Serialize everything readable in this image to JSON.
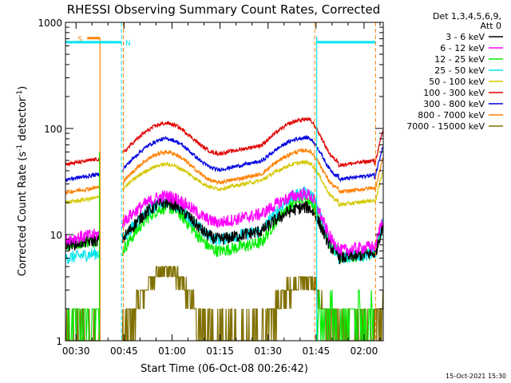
{
  "chart_data": {
    "type": "line",
    "title": "RHESSI Observing Summary Count Rates, Corrected",
    "xlabel": "Start Time (06-Oct-08 00:26:42)",
    "ylabel_main": "Corrected Count Rate (s",
    "ylabel_sup1": "-1",
    "ylabel_mid": " detector",
    "ylabel_sup2": "-1",
    "ylabel_end": ")",
    "y_scale": "log",
    "ylim": [
      1,
      1000
    ],
    "xlim_minutes": [
      26.7,
      126
    ],
    "x_ticks": [
      {
        "m": 30,
        "label": "00:30"
      },
      {
        "m": 45,
        "label": "00:45"
      },
      {
        "m": 60,
        "label": "01:00"
      },
      {
        "m": 75,
        "label": "01:15"
      },
      {
        "m": 90,
        "label": "01:30"
      },
      {
        "m": 105,
        "label": "01:45"
      },
      {
        "m": 120,
        "label": "02:00"
      }
    ],
    "y_ticks": [
      {
        "v": 1,
        "label": "1"
      },
      {
        "v": 10,
        "label": "10"
      },
      {
        "v": 100,
        "label": "100"
      },
      {
        "v": 1000,
        "label": "1000"
      }
    ],
    "legend_header": [
      "Det 1,3,4,5,6,9,",
      "Att 0"
    ],
    "legend_position": "right",
    "series": [
      {
        "name": "3 - 6 keV",
        "color": "#000000",
        "pre": 8,
        "mid": 20,
        "low": 9,
        "post": 18,
        "tail": 6
      },
      {
        "name": "6 - 12 keV",
        "color": "#ff00ff",
        "pre": 9,
        "mid": 23,
        "low": 13,
        "post": 24,
        "tail": 7
      },
      {
        "name": "12 - 25 keV",
        "color": "#00ee00",
        "pre": 8,
        "mid": 18,
        "low": 7,
        "post": 22,
        "tail": 6
      },
      {
        "name": "25 - 50 keV",
        "color": "#00e5ee",
        "pre": 6,
        "mid": 20,
        "low": 9,
        "post": 25,
        "tail": 6
      },
      {
        "name": "50 - 100 keV",
        "color": "#d4c800",
        "pre": 20,
        "mid": 46,
        "low": 27,
        "post": 48,
        "tail": 19
      },
      {
        "name": "100 - 300 keV",
        "color": "#e00000",
        "pre": 46,
        "mid": 112,
        "low": 58,
        "post": 122,
        "tail": 45
      },
      {
        "name": "300 - 800 keV",
        "color": "#0000e0",
        "pre": 33,
        "mid": 80,
        "low": 41,
        "post": 82,
        "tail": 33
      },
      {
        "name": "800 - 7000 keV",
        "color": "#ff8000",
        "pre": 25,
        "mid": 60,
        "low": 31,
        "post": 62,
        "tail": 25
      },
      {
        "name": "7000 - 15000 keV",
        "color": "#807000",
        "pre": 1,
        "mid": 4.8,
        "low": 1,
        "post": 3.8,
        "tail": 1
      }
    ],
    "flags": [
      {
        "label": "S",
        "color": "#ff8000",
        "start_m": 33.5,
        "end_m": 37.5,
        "level": 710
      },
      {
        "label": "N",
        "color": "#00e5ee",
        "start_m": 26.7,
        "end_m": 44.2,
        "level": 650
      },
      {
        "label": "",
        "color": "#00e5ee",
        "start_m": 105.2,
        "end_m": 123.5,
        "level": 650
      }
    ],
    "night_markers_m": [
      44.8,
      104.6,
      123.6
    ],
    "footer_date": "15-Oct-2021 15:30"
  }
}
